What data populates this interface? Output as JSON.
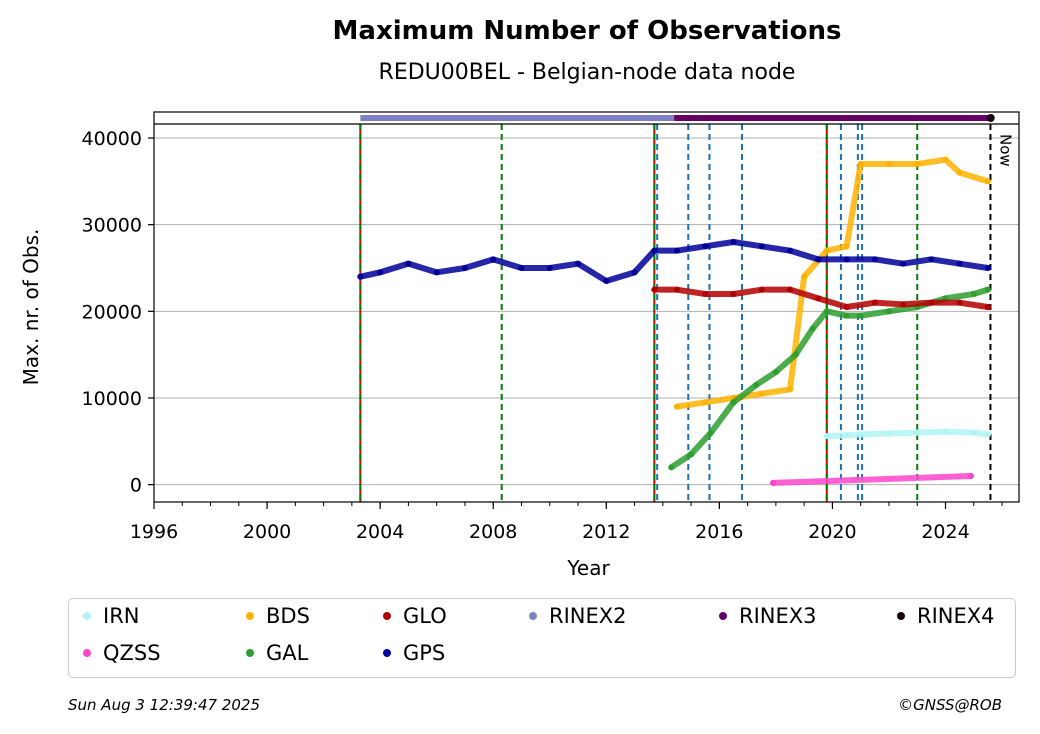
{
  "chart_data": {
    "type": "scatter",
    "title": "Maximum Number of Observations",
    "subtitle": "REDU00BEL - Belgian-node data node",
    "xlabel": "Year",
    "ylabel": "Max. nr. of Obs.",
    "xlim": [
      1996,
      2026.6
    ],
    "ylim": [
      -2000,
      43000
    ],
    "xticks": [
      "1996",
      "2000",
      "2004",
      "2008",
      "2012",
      "2016",
      "2020",
      "2024"
    ],
    "yticks": [
      "0",
      "10000",
      "20000",
      "30000",
      "40000"
    ],
    "grid": "horizontal",
    "now_label": "Now",
    "now_year": 2025.59,
    "red_event_lines": [
      2003.3,
      2013.7,
      2019.8
    ],
    "green_event_lines": [
      2003.3,
      2008.3,
      2013.7,
      2019.8,
      2023.0
    ],
    "blue_event_lines": [
      2013.8,
      2014.9,
      2015.65,
      2016.8,
      2020.3,
      2020.9,
      2021.05
    ],
    "series": [
      {
        "name": "IRN",
        "color": "#b0f4f4",
        "x": [
          2019.8,
          2020.5,
          2021.0,
          2022.0,
          2023.0,
          2024.0,
          2025.0,
          2025.5
        ],
        "y": [
          5600,
          5700,
          5800,
          5900,
          6000,
          6100,
          6000,
          5800
        ]
      },
      {
        "name": "QZSS",
        "color": "#ff44cc",
        "x": [
          2017.9,
          2024.9
        ],
        "y": [
          200,
          1000
        ]
      },
      {
        "name": "BDS",
        "color": "#ffb300",
        "x": [
          2014.5,
          2015.5,
          2016.5,
          2017.5,
          2018.5,
          2019.0,
          2019.8,
          2020.5,
          2021.0,
          2022.0,
          2023.0,
          2024.0,
          2024.5,
          2025.5
        ],
        "y": [
          9000,
          9500,
          10000,
          10500,
          11000,
          24000,
          27000,
          27500,
          37000,
          37000,
          37000,
          37500,
          36000,
          35000
        ]
      },
      {
        "name": "GAL",
        "color": "#2e9e2e",
        "x": [
          2014.3,
          2015.0,
          2015.7,
          2016.5,
          2017.3,
          2018.0,
          2018.7,
          2019.3,
          2019.8,
          2020.5,
          2021.0,
          2022.0,
          2023.0,
          2024.0,
          2025.0,
          2025.5
        ],
        "y": [
          2000,
          3500,
          6000,
          9500,
          11500,
          13000,
          15000,
          18000,
          20000,
          19500,
          19500,
          20000,
          20500,
          21500,
          22000,
          22500
        ]
      },
      {
        "name": "GLO",
        "color": "#b30000",
        "x": [
          2013.7,
          2014.5,
          2015.5,
          2016.5,
          2017.5,
          2018.5,
          2019.5,
          2020.5,
          2021.5,
          2022.5,
          2023.5,
          2024.5,
          2025.5
        ],
        "y": [
          22500,
          22500,
          22000,
          22000,
          22500,
          22500,
          21500,
          20500,
          21000,
          20800,
          21000,
          21000,
          20500
        ]
      },
      {
        "name": "GPS",
        "color": "#000099",
        "x": [
          2003.3,
          2004.0,
          2005.0,
          2006.0,
          2007.0,
          2008.0,
          2009.0,
          2010.0,
          2011.0,
          2012.0,
          2013.0,
          2013.7,
          2014.5,
          2015.5,
          2016.5,
          2017.5,
          2018.5,
          2019.5,
          2020.5,
          2021.5,
          2022.5,
          2023.5,
          2024.5,
          2025.5
        ],
        "y": [
          24000,
          24500,
          25500,
          24500,
          25000,
          26000,
          25000,
          25000,
          25500,
          23500,
          24500,
          27000,
          27000,
          27500,
          28000,
          27500,
          27000,
          26000,
          26000,
          26000,
          25500,
          26000,
          25500,
          25000
        ]
      },
      {
        "name": "RINEX2",
        "color": "#8080c8",
        "x": [
          2003.3,
          2014.4
        ],
        "y": [
          43800,
          43800
        ]
      },
      {
        "name": "RINEX3",
        "color": "#660066",
        "x": [
          2014.4,
          2025.6
        ],
        "y": [
          43800,
          43800
        ]
      },
      {
        "name": "RINEX4",
        "color": "#1a0010",
        "x": [
          2025.6
        ],
        "y": [
          43800
        ]
      }
    ]
  },
  "legend": {
    "row1": [
      "IRN",
      "BDS",
      "GLO",
      "RINEX2",
      "RINEX3",
      "RINEX4"
    ],
    "row2": [
      "QZSS",
      "GAL",
      "GPS"
    ],
    "colors": {
      "IRN": "#b0f4f4",
      "BDS": "#ffb300",
      "GLO": "#b30000",
      "RINEX2": "#8080c8",
      "RINEX3": "#660066",
      "RINEX4": "#1a0010",
      "QZSS": "#ff44cc",
      "GAL": "#2e9e2e",
      "GPS": "#000099"
    }
  },
  "footer": {
    "timestamp": "Sun Aug  3 12:39:47 2025",
    "credit": "©GNSS@ROB"
  }
}
